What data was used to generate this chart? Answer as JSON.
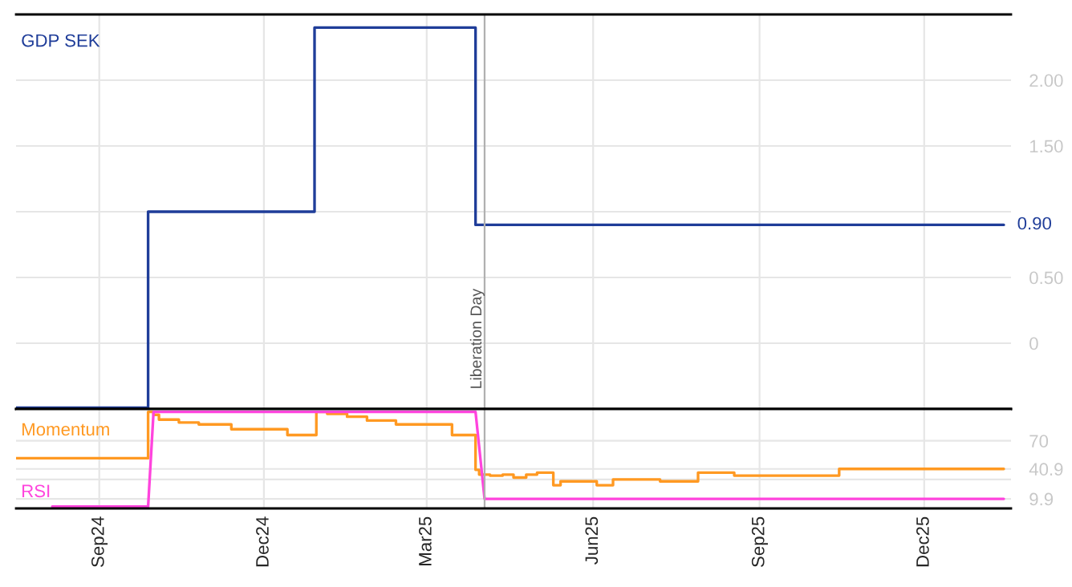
{
  "chart_data": [
    {
      "type": "step",
      "x": [
        "2024-07-17",
        "2024-09-28",
        "2024-12-29",
        "2025-03-28",
        "2026-01-14"
      ],
      "series": [
        {
          "name": "GDP SEK",
          "color": "#1f3d99",
          "values": [
            -0.49,
            1.0,
            2.4,
            0.9,
            0.9
          ]
        }
      ],
      "xlim": [
        "2024-07-17",
        "2026-01-18"
      ],
      "xticks": [
        {
          "value": "2024-09-01",
          "label": null
        },
        {
          "value": "2024-12-01",
          "label": null
        },
        {
          "value": "2025-03-01",
          "label": null
        },
        {
          "value": "2025-06-01",
          "label": null
        },
        {
          "value": "2025-09-01",
          "label": null
        },
        {
          "value": "2025-12-01",
          "label": null
        }
      ],
      "ylim": [
        -0.5,
        2.5
      ],
      "yticks": [
        0,
        {
          "value": 0.5,
          "label": "0.50"
        },
        {
          "value": 1.0,
          "label": null
        },
        {
          "value": 1.5,
          "label": "1.50"
        },
        {
          "value": 2.0,
          "label": "2.00"
        }
      ],
      "tick_labels": "y",
      "grid": true,
      "ref_lines": [
        {
          "axis": "x",
          "value": "2025-04-02",
          "label": "Liberation Day",
          "color": "#b0b0b0"
        }
      ],
      "annotations": [
        {
          "text": "0.90",
          "x": "2026-01-14",
          "y": 0.9
        }
      ]
    },
    {
      "type": "step",
      "series": [
        {
          "name": "Momentum",
          "color": "#ff9922",
          "x": [
            "2024-07-17",
            "2024-09-28",
            "2024-10-01",
            "2024-10-04",
            "2024-10-15",
            "2024-10-26",
            "2024-11-13",
            "2024-12-14",
            "2024-12-30",
            "2025-01-05",
            "2025-01-16",
            "2025-01-27",
            "2025-02-12",
            "2025-03-15",
            "2025-03-28",
            "2025-03-30",
            "2025-04-05",
            "2025-04-12",
            "2025-04-18",
            "2025-04-25",
            "2025-05-01",
            "2025-05-10",
            "2025-05-14",
            "2025-06-03",
            "2025-06-12",
            "2025-07-08",
            "2025-07-29",
            "2025-08-18",
            "2025-10-15",
            "2026-01-14"
          ],
          "values": [
            52,
            100,
            97,
            92,
            89,
            87,
            82,
            76,
            100,
            98,
            95,
            91,
            87,
            76,
            40,
            35,
            34,
            35,
            32,
            35,
            37,
            24,
            28,
            24,
            30,
            28,
            37,
            34,
            40.9,
            40.9
          ]
        },
        {
          "name": "RSI",
          "color": "#ff44dd",
          "type": "line",
          "x": [
            "2024-08-06",
            "2024-09-28",
            "2024-10-01",
            "2025-03-28",
            "2025-04-02",
            "2026-01-14"
          ],
          "values": [
            2,
            2,
            100,
            100,
            9.9,
            9.9
          ]
        }
      ],
      "xlim": [
        "2024-07-17",
        "2026-01-18"
      ],
      "xticks": [
        {
          "value": "2024-09-01",
          "label": "Sep24"
        },
        {
          "value": "2024-12-01",
          "label": "Dec24"
        },
        {
          "value": "2025-03-01",
          "label": "Mar25"
        },
        {
          "value": "2025-06-01",
          "label": "Jun25"
        },
        {
          "value": "2025-09-01",
          "label": "Sep25"
        },
        {
          "value": "2025-12-01",
          "label": "Dec25"
        }
      ],
      "ylim": [
        0,
        103
      ],
      "yticks": [
        {
          "value": 9.9,
          "label": "9.9"
        },
        {
          "value": 30,
          "label": null
        },
        {
          "value": 40.9,
          "label": "40.9"
        },
        70
      ],
      "grid": true,
      "ref_lines": [
        {
          "axis": "x",
          "value": "2025-04-02",
          "label": null,
          "color": "#b0b0b0"
        }
      ]
    }
  ]
}
